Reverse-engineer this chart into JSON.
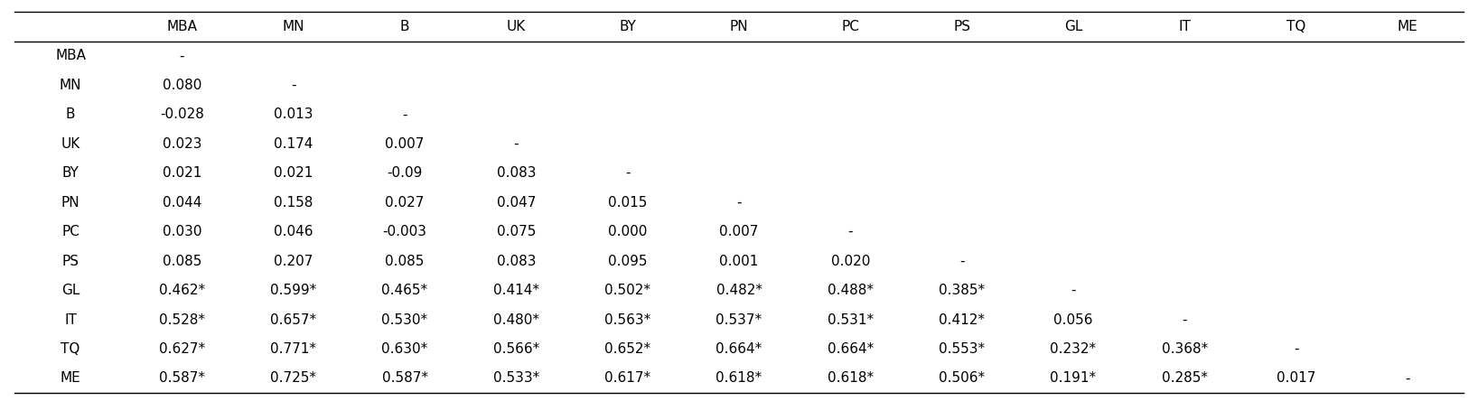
{
  "columns": [
    "",
    "MBA",
    "MN",
    "B",
    "UK",
    "BY",
    "PN",
    "PC",
    "PS",
    "GL",
    "IT",
    "TQ",
    "ME"
  ],
  "rows": [
    [
      "MBA",
      "-",
      "",
      "",
      "",
      "",
      "",
      "",
      "",
      "",
      "",
      "",
      ""
    ],
    [
      "MN",
      "0.080",
      "-",
      "",
      "",
      "",
      "",
      "",
      "",
      "",
      "",
      "",
      ""
    ],
    [
      "B",
      "-0.028",
      "0.013",
      "-",
      "",
      "",
      "",
      "",
      "",
      "",
      "",
      "",
      ""
    ],
    [
      "UK",
      "0.023",
      "0.174",
      "0.007",
      "-",
      "",
      "",
      "",
      "",
      "",
      "",
      "",
      ""
    ],
    [
      "BY",
      "0.021",
      "0.021",
      "-0.09",
      "0.083",
      "-",
      "",
      "",
      "",
      "",
      "",
      "",
      ""
    ],
    [
      "PN",
      "0.044",
      "0.158",
      "0.027",
      "0.047",
      "0.015",
      "-",
      "",
      "",
      "",
      "",
      "",
      ""
    ],
    [
      "PC",
      "0.030",
      "0.046",
      "-0.003",
      "0.075",
      "0.000",
      "0.007",
      "-",
      "",
      "",
      "",
      "",
      ""
    ],
    [
      "PS",
      "0.085",
      "0.207",
      "0.085",
      "0.083",
      "0.095",
      "0.001",
      "0.020",
      "-",
      "",
      "",
      "",
      ""
    ],
    [
      "GL",
      "0.462*",
      "0.599*",
      "0.465*",
      "0.414*",
      "0.502*",
      "0.482*",
      "0.488*",
      "0.385*",
      "-",
      "",
      "",
      ""
    ],
    [
      "IT",
      "0.528*",
      "0.657*",
      "0.530*",
      "0.480*",
      "0.563*",
      "0.537*",
      "0.531*",
      "0.412*",
      "0.056",
      "-",
      "",
      ""
    ],
    [
      "TQ",
      "0.627*",
      "0.771*",
      "0.630*",
      "0.566*",
      "0.652*",
      "0.664*",
      "0.664*",
      "0.553*",
      "0.232*",
      "0.368*",
      "-",
      ""
    ],
    [
      "ME",
      "0.587*",
      "0.725*",
      "0.587*",
      "0.533*",
      "0.617*",
      "0.618*",
      "0.618*",
      "0.506*",
      "0.191*",
      "0.285*",
      "0.017",
      "-"
    ]
  ],
  "text_color": "#000000",
  "font_size": 11,
  "header_font_size": 11
}
